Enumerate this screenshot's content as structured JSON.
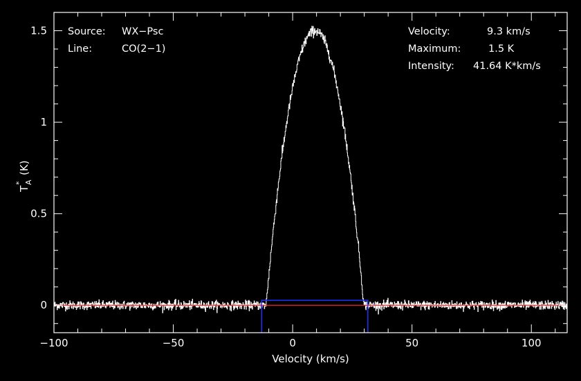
{
  "chart_data": {
    "type": "line",
    "x_label": "Velocity (km/s)",
    "y_label_main": "T",
    "y_label_sup": "*",
    "y_label_sub": "A",
    "y_label_unit": "(K)",
    "xlim": [
      -100,
      115
    ],
    "ylim": [
      -0.15,
      1.6
    ],
    "x_ticks": [
      -100,
      -50,
      0,
      50,
      100
    ],
    "x_tick_labels": [
      "−100",
      "−50",
      "0",
      "50",
      "100"
    ],
    "y_ticks": [
      0,
      0.5,
      1,
      1.5
    ],
    "y_tick_labels": [
      "0",
      "0.5",
      "1",
      "1.5"
    ],
    "grid": false,
    "background": "#000000",
    "spectrum_color": "#ffffff",
    "baseline_color": "#ff2020",
    "window_color": "#2030ff",
    "baseline_level": 0,
    "integration_window": {
      "v_min": -13.0,
      "v_max": 31.5,
      "level": 0.027
    },
    "series": [
      {
        "profile": "parabolic",
        "v_center": 9.3,
        "v_half_width": 20.5,
        "t_peak": 1.5,
        "noise_rms": 0.012,
        "v_step": 0.13
      }
    ]
  },
  "info": {
    "source_label": "Source:",
    "source_value": "WX−Psc",
    "line_label": "Line:",
    "line_value": "CO(2−1)",
    "velocity_label": "Velocity:",
    "velocity_value": "9.3 km/s",
    "maximum_label": "Maximum:",
    "maximum_value": "1.5 K",
    "intensity_label": "Intensity:",
    "intensity_value": "41.64 K*km/s"
  }
}
